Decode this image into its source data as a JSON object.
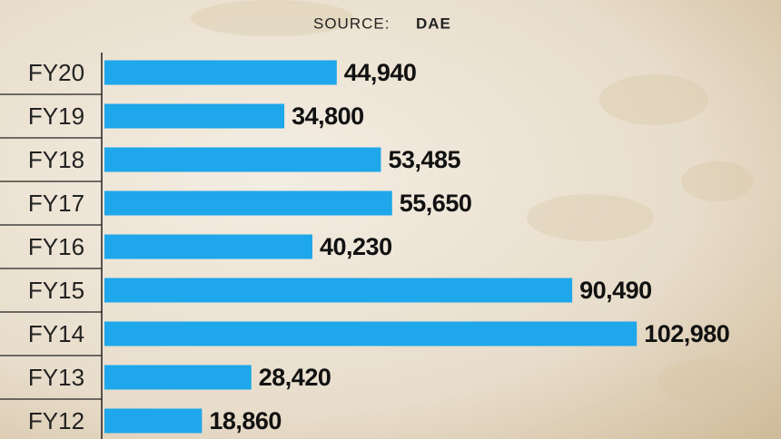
{
  "chart_data": {
    "type": "bar",
    "orientation": "horizontal",
    "source_label": "SOURCE:",
    "source": "DAE",
    "categories": [
      "FY20",
      "FY19",
      "FY18",
      "FY17",
      "FY16",
      "FY15",
      "FY14",
      "FY13",
      "FY12"
    ],
    "values": [
      44940,
      34800,
      53485,
      55650,
      40230,
      90490,
      102980,
      28420,
      18860
    ],
    "value_labels": [
      "44,940",
      "34,800",
      "53,485",
      "55,650",
      "40,230",
      "90,490",
      "102,980",
      "28,420",
      "18,860"
    ],
    "color": "#1ea7ea",
    "xlim": [
      0,
      130000
    ]
  }
}
